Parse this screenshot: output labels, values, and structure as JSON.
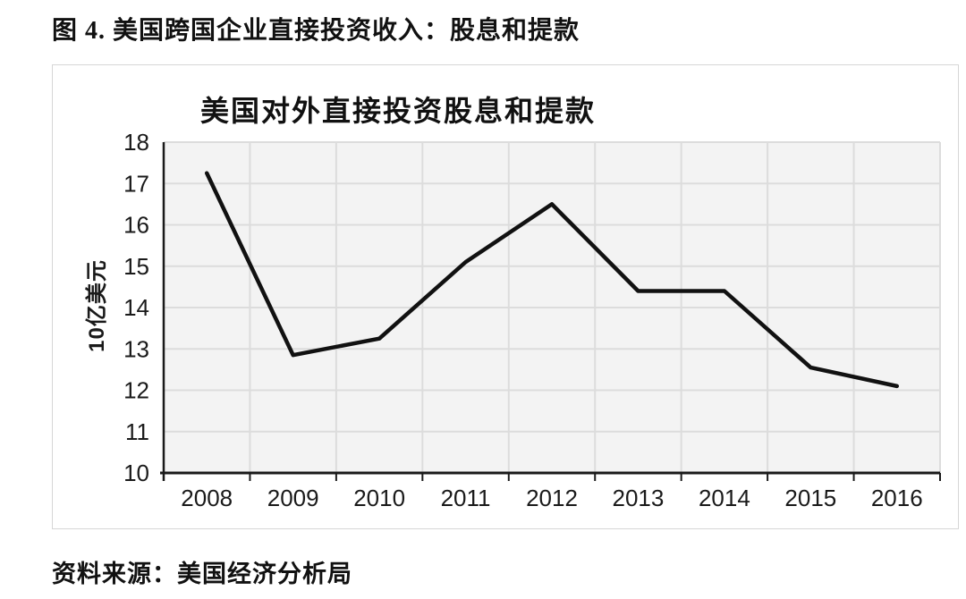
{
  "figure": {
    "title": "图 4. 美国跨国企业直接投资收入：股息和提款",
    "source": "资料来源：美国经济分析局"
  },
  "chart_data": {
    "type": "line",
    "title": "美国对外直接投资股息和提款",
    "categories": [
      "2008",
      "2009",
      "2010",
      "2011",
      "2012",
      "2013",
      "2014",
      "2015",
      "2016"
    ],
    "values": [
      17.25,
      12.85,
      13.25,
      15.1,
      16.5,
      14.4,
      14.4,
      12.55,
      12.1
    ],
    "xlabel": "",
    "ylabel": "10亿美元",
    "ylim": [
      10,
      18
    ],
    "ytick_step": 1,
    "yticks": [
      10,
      11,
      12,
      13,
      14,
      15,
      16,
      17,
      18
    ],
    "grid": true,
    "legend": "none",
    "line_color": "#111111",
    "axis_color": "#1a1a1a",
    "plot_bg": "#f3f3f3",
    "grid_color": "#dcdcdc"
  }
}
